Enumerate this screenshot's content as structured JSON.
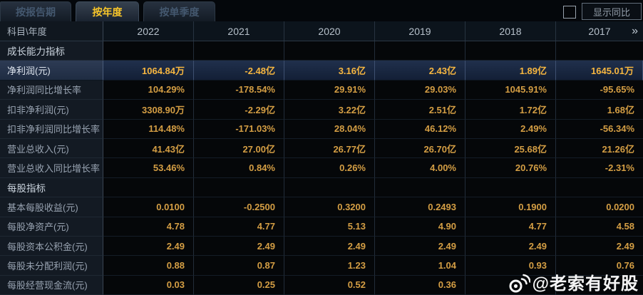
{
  "tabs": [
    {
      "label": "按报告期",
      "active": false
    },
    {
      "label": "按年度",
      "active": true
    },
    {
      "label": "按单季度",
      "active": false
    }
  ],
  "controls": {
    "compare_checkbox_checked": false,
    "compare_label": "显示同比"
  },
  "table": {
    "corner_label": "科目\\年度",
    "years": [
      "2022",
      "2021",
      "2020",
      "2019",
      "2018",
      "2017"
    ],
    "more_icon": "»",
    "rows": [
      {
        "type": "section",
        "label": "成长能力指标"
      },
      {
        "type": "data",
        "label": "净利润(元)",
        "highlight": true,
        "values": [
          "1064.84万",
          "-2.48亿",
          "3.16亿",
          "2.43亿",
          "1.89亿",
          "1645.01万"
        ]
      },
      {
        "type": "data",
        "label": "净利润同比增长率",
        "values": [
          "104.29%",
          "-178.54%",
          "29.91%",
          "29.03%",
          "1045.91%",
          "-95.65%"
        ]
      },
      {
        "type": "data",
        "label": "扣非净利润(元)",
        "values": [
          "3308.90万",
          "-2.29亿",
          "3.22亿",
          "2.51亿",
          "1.72亿",
          "1.68亿"
        ]
      },
      {
        "type": "data",
        "label": "扣非净利润同比增长率",
        "values": [
          "114.48%",
          "-171.03%",
          "28.04%",
          "46.12%",
          "2.49%",
          "-56.34%"
        ]
      },
      {
        "type": "data",
        "label": "营业总收入(元)",
        "values": [
          "41.43亿",
          "27.00亿",
          "26.77亿",
          "26.70亿",
          "25.68亿",
          "21.26亿"
        ]
      },
      {
        "type": "data",
        "label": "营业总收入同比增长率",
        "values": [
          "53.46%",
          "0.84%",
          "0.26%",
          "4.00%",
          "20.76%",
          "-2.31%"
        ]
      },
      {
        "type": "section",
        "label": "每股指标"
      },
      {
        "type": "data",
        "label": "基本每股收益(元)",
        "values": [
          "0.0100",
          "-0.2500",
          "0.3200",
          "0.2493",
          "0.1900",
          "0.0200"
        ]
      },
      {
        "type": "data",
        "label": "每股净资产(元)",
        "values": [
          "4.78",
          "4.77",
          "5.13",
          "4.90",
          "4.77",
          "4.58"
        ]
      },
      {
        "type": "data",
        "label": "每股资本公积金(元)",
        "values": [
          "2.49",
          "2.49",
          "2.49",
          "2.49",
          "2.49",
          "2.49"
        ]
      },
      {
        "type": "data",
        "label": "每股未分配利润(元)",
        "values": [
          "0.88",
          "0.87",
          "1.23",
          "1.04",
          "0.93",
          "0.76"
        ]
      },
      {
        "type": "data",
        "label": "每股经营现金流(元)",
        "values": [
          "0.03",
          "0.25",
          "0.52",
          "0.36",
          "",
          ""
        ]
      }
    ]
  },
  "watermark": {
    "text": "@老索有好股"
  },
  "colors": {
    "accent_value": "#d49e44",
    "highlight_value": "#f6b640",
    "active_tab_text": "#f8c62a",
    "highlight_row_bg": "#20304c",
    "label_column_bg": "#131a23",
    "page_bg": "#04070b"
  }
}
